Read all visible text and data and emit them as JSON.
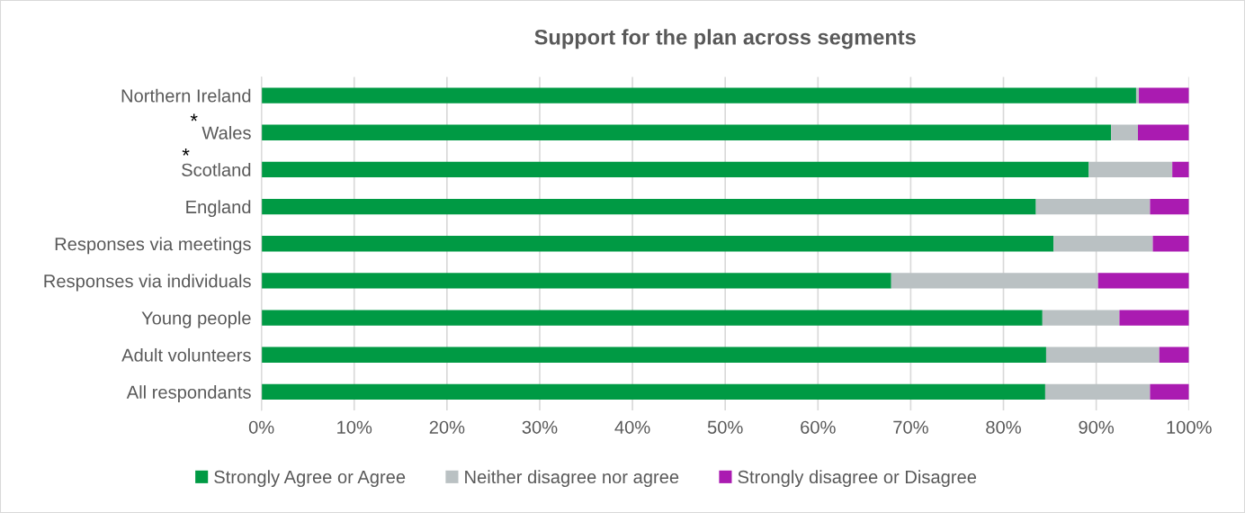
{
  "chart_data": {
    "type": "bar",
    "orientation": "horizontal",
    "stacked": true,
    "title": "Support for the plan across segments",
    "categories": [
      "Northern Ireland",
      "Wales",
      "Scotland",
      "England",
      "Responses via meetings",
      "Responses via individuals",
      "Young people",
      "Adult volunteers",
      "All respondants"
    ],
    "series": [
      {
        "name": "Strongly Agree or Agree",
        "color": "#009a44",
        "values": [
          94.3,
          91.6,
          89.2,
          83.5,
          85.4,
          67.9,
          84.2,
          84.6,
          84.5
        ]
      },
      {
        "name": "Neither disagree nor agree",
        "color": "#bac1c3",
        "values": [
          0.3,
          2.9,
          9.0,
          12.3,
          10.7,
          22.3,
          8.3,
          12.2,
          11.3
        ]
      },
      {
        "name": "Strongly disagree or Disagree",
        "color": "#aa1bb1",
        "values": [
          5.4,
          5.5,
          1.8,
          4.2,
          3.9,
          9.8,
          7.5,
          3.2,
          4.2
        ]
      }
    ],
    "xlim": [
      0,
      100
    ],
    "xticks": [
      {
        "value": 0,
        "label": "0%"
      },
      {
        "value": 10,
        "label": "10%"
      },
      {
        "value": 20,
        "label": "20%"
      },
      {
        "value": 30,
        "label": "30%"
      },
      {
        "value": 40,
        "label": "40%"
      },
      {
        "value": 50,
        "label": "50%"
      },
      {
        "value": 60,
        "label": "60%"
      },
      {
        "value": 70,
        "label": "70%"
      },
      {
        "value": 80,
        "label": "80%"
      },
      {
        "value": 90,
        "label": "90%"
      },
      {
        "value": 100,
        "label": "100%"
      }
    ],
    "grid": "x",
    "legend": "bottom",
    "annotations": [
      "*",
      "*"
    ]
  }
}
